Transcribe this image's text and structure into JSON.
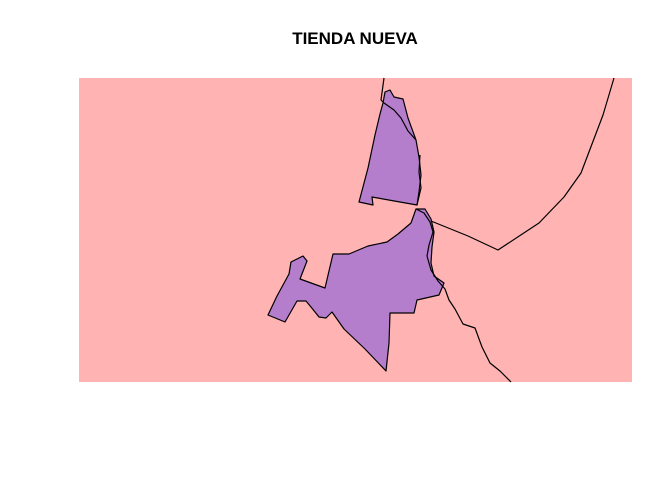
{
  "title": "TIENDA NUEVA",
  "colors": {
    "background_region": "#FFB3B3",
    "highlight_region": "#B57ECC",
    "boundary_line": "#000000",
    "page_background": "#FFFFFF"
  },
  "regions": [
    {
      "name": "surrounding-area",
      "highlighted": false
    },
    {
      "name": "tienda-nueva-north",
      "highlighted": true
    },
    {
      "name": "tienda-nueva-main",
      "highlighted": true
    }
  ]
}
